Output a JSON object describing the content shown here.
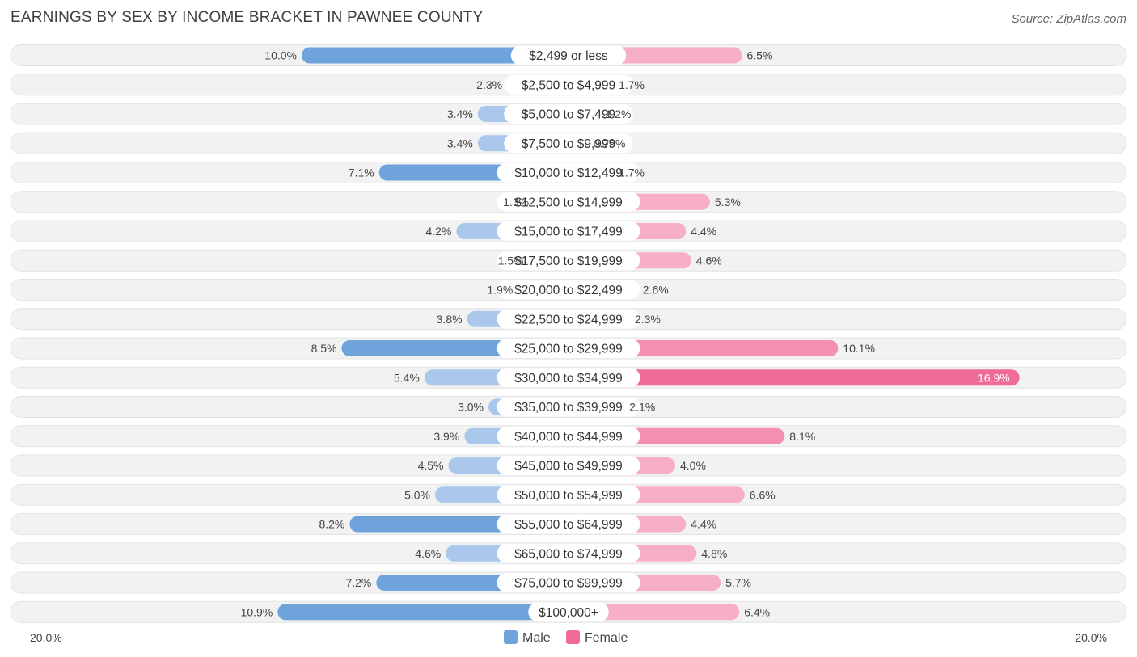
{
  "chart_data": {
    "type": "bar",
    "orientation": "horizontal-diverging",
    "title": "EARNINGS BY SEX BY INCOME BRACKET IN PAWNEE COUNTY",
    "source": "Source: ZipAtlas.com",
    "categories": [
      "$2,499 or less",
      "$2,500 to $4,999",
      "$5,000 to $7,499",
      "$7,500 to $9,999",
      "$10,000 to $12,499",
      "$12,500 to $14,999",
      "$15,000 to $17,499",
      "$17,500 to $19,999",
      "$20,000 to $22,499",
      "$22,500 to $24,999",
      "$25,000 to $29,999",
      "$30,000 to $34,999",
      "$35,000 to $39,999",
      "$40,000 to $44,999",
      "$45,000 to $49,999",
      "$50,000 to $54,999",
      "$55,000 to $64,999",
      "$65,000 to $74,999",
      "$75,000 to $99,999",
      "$100,000+"
    ],
    "series": [
      {
        "name": "Male",
        "color": "#6fa3dc",
        "color_light": "#a9c8ec",
        "values": [
          10.0,
          2.3,
          3.4,
          3.4,
          7.1,
          1.3,
          4.2,
          1.5,
          1.9,
          3.8,
          8.5,
          5.4,
          3.0,
          3.9,
          4.5,
          5.0,
          8.2,
          4.6,
          7.2,
          10.9
        ],
        "labels": [
          "10.0%",
          "2.3%",
          "3.4%",
          "3.4%",
          "7.1%",
          "1.3%",
          "4.2%",
          "1.5%",
          "1.9%",
          "3.8%",
          "8.5%",
          "5.4%",
          "3.0%",
          "3.9%",
          "4.5%",
          "5.0%",
          "8.2%",
          "4.6%",
          "7.2%",
          "10.9%"
        ]
      },
      {
        "name": "Female",
        "color": "#f06b95",
        "color_light": "#f7afc6",
        "values": [
          6.5,
          1.7,
          1.2,
          0.75,
          1.7,
          5.3,
          4.4,
          4.6,
          2.6,
          2.3,
          10.1,
          16.9,
          2.1,
          8.1,
          4.0,
          6.6,
          4.4,
          4.8,
          5.7,
          6.4
        ],
        "labels": [
          "6.5%",
          "1.7%",
          "1.2%",
          "0.75%",
          "1.7%",
          "5.3%",
          "4.4%",
          "4.6%",
          "2.6%",
          "2.3%",
          "10.1%",
          "16.9%",
          "2.1%",
          "8.1%",
          "4.0%",
          "6.6%",
          "4.4%",
          "4.8%",
          "5.7%",
          "6.4%"
        ]
      }
    ],
    "xlim": [
      -20,
      20
    ],
    "axis_left_label": "20.0%",
    "axis_right_label": "20.0%",
    "legend": [
      "Male",
      "Female"
    ],
    "legend_position": "bottom-center"
  }
}
